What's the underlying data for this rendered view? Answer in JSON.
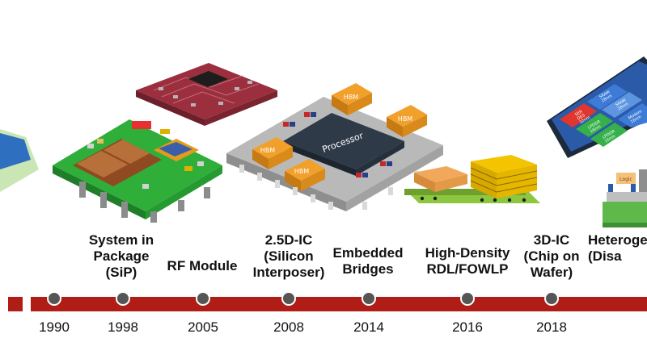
{
  "timeline": {
    "milestones": [
      {
        "year": "1990",
        "label": ""
      },
      {
        "year": "1998",
        "label": "System in\nPackage\n(SiP)"
      },
      {
        "year": "2005",
        "label": "RF Module"
      },
      {
        "year": "2008",
        "label": "2.5D-IC\n(Silicon\nInterposer)"
      },
      {
        "year": "2014",
        "label": "Embedded\nBridges"
      },
      {
        "year": "2016",
        "label": "High-Density\nRDL/FOWLP"
      },
      {
        "year": "2018",
        "label": "3D-IC\n(Chip on\nWafer)"
      },
      {
        "year": "",
        "label": "Heteroge\n(Disa"
      }
    ],
    "colors": {
      "bar": "#b01c16",
      "dot": "#555555"
    }
  },
  "illustrations": {
    "processor": "Processor",
    "hbm": "HBM",
    "stack_chips": [
      "SER\nDES\n32nm",
      "SRAM\n28nm",
      "SRAM\n28nm",
      "LPDDR\n16nm",
      "LPDDR\n16nm",
      "Modem\n16nm"
    ],
    "hetero_chip": "Logic"
  }
}
